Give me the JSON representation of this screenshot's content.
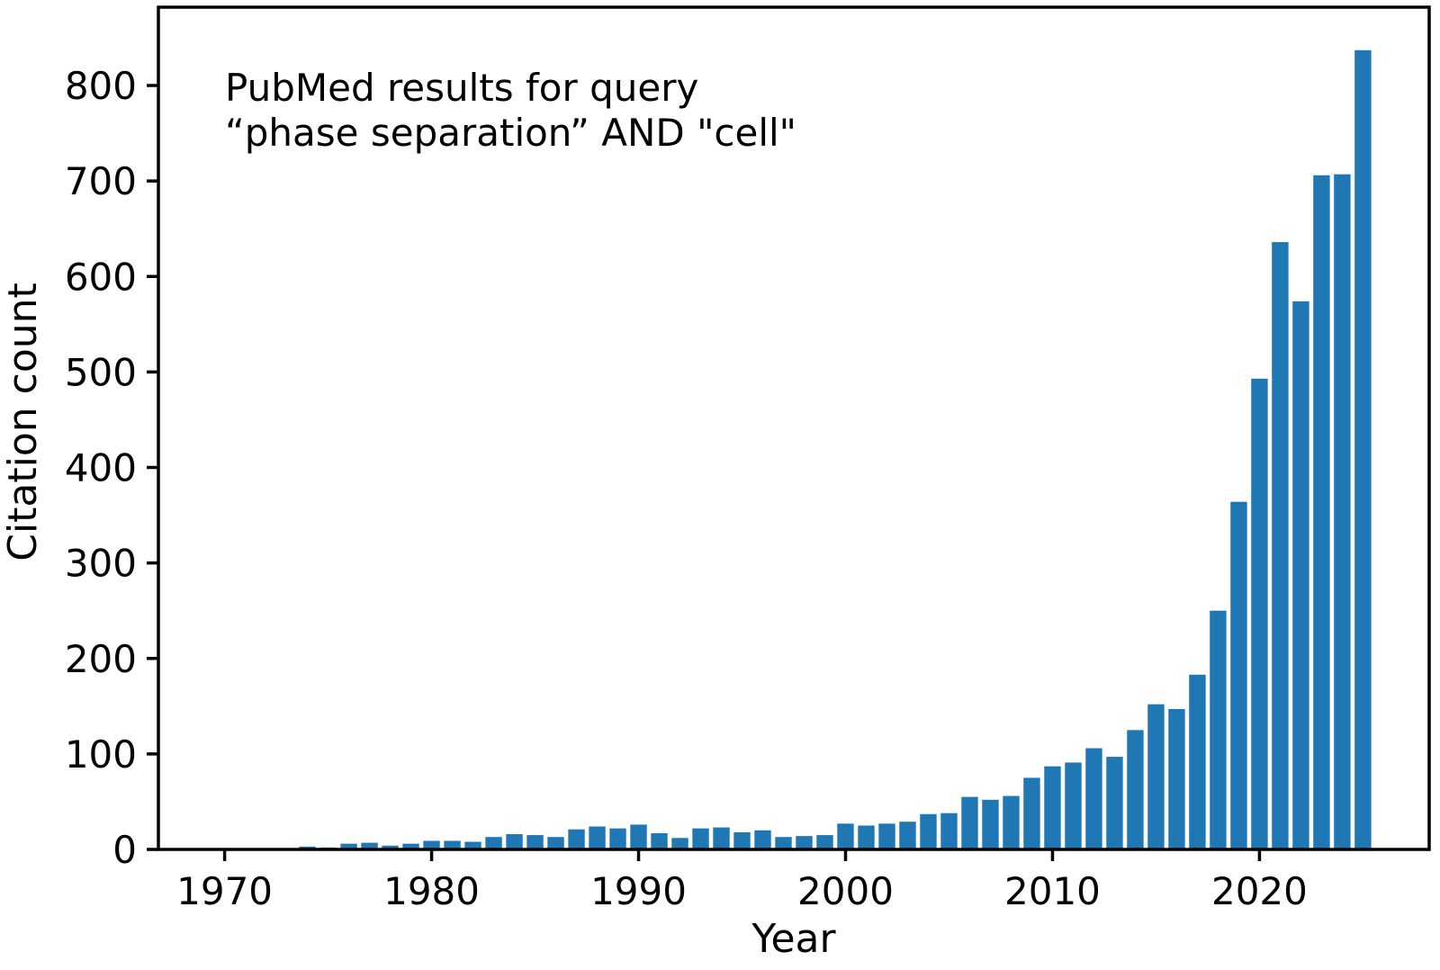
{
  "figure": {
    "background": "#ffffff",
    "bar_color": "#1f77b4",
    "axis_color": "#000000"
  },
  "chart_data": {
    "type": "bar",
    "title_lines": [
      "PubMed results for query",
      "“phase separation” AND \"cell\""
    ],
    "xlabel": "Year",
    "ylabel": "Citation count",
    "categories": [
      1974,
      1975,
      1976,
      1977,
      1978,
      1979,
      1980,
      1981,
      1982,
      1983,
      1984,
      1985,
      1986,
      1987,
      1988,
      1989,
      1990,
      1991,
      1992,
      1993,
      1994,
      1995,
      1996,
      1997,
      1998,
      1999,
      2000,
      2001,
      2002,
      2003,
      2004,
      2005,
      2006,
      2007,
      2008,
      2009,
      2010,
      2011,
      2012,
      2013,
      2014,
      2015,
      2016,
      2017,
      2018,
      2019,
      2020,
      2021,
      2022,
      2023,
      2024,
      2025
    ],
    "values": [
      3,
      2,
      6,
      7,
      4,
      6,
      9,
      9,
      8,
      13,
      16,
      15,
      13,
      21,
      24,
      22,
      26,
      17,
      12,
      22,
      23,
      18,
      20,
      13,
      14,
      15,
      27,
      25,
      27,
      29,
      37,
      38,
      55,
      52,
      56,
      75,
      87,
      91,
      106,
      97,
      125,
      152,
      147,
      183,
      250,
      364,
      493,
      636,
      574,
      706,
      707,
      837
    ],
    "bar_width": 0.8,
    "xticks": [
      1970,
      1980,
      1990,
      2000,
      2010,
      2020
    ],
    "yticks": [
      0,
      100,
      200,
      300,
      400,
      500,
      600,
      700,
      800
    ],
    "xlim": [
      1966.8,
      2028.2
    ],
    "ylim": [
      0,
      882
    ],
    "grid": false,
    "legend": null
  }
}
